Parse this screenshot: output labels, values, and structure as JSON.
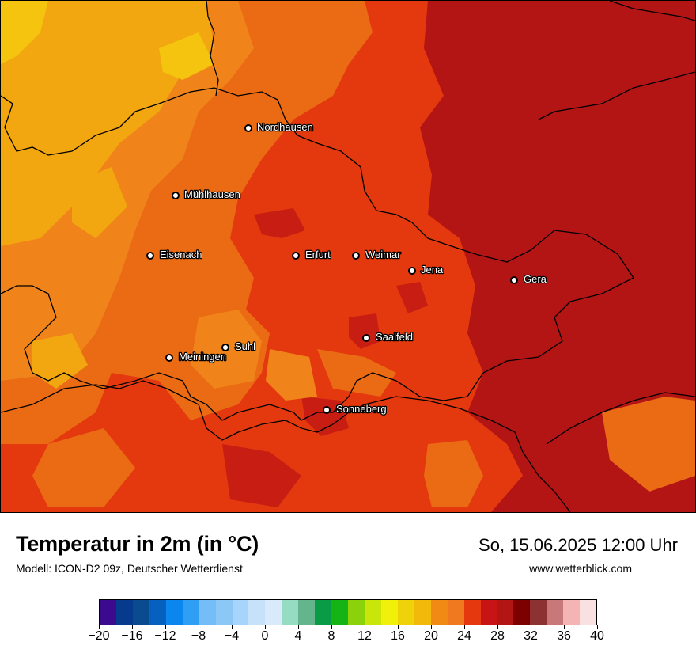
{
  "header": {
    "title": "Temperatur in 2m (in °C)",
    "model": "Modell: ICON-D2 09z, Deutscher Wetterdienst",
    "datetime": "So, 15.06.2025 12:00 Uhr",
    "website": "www.wetterblick.com"
  },
  "map": {
    "cities": [
      {
        "name": "Nordhausen"
      },
      {
        "name": "Mühlhausen"
      },
      {
        "name": "Eisenach"
      },
      {
        "name": "Erfurt"
      },
      {
        "name": "Weimar"
      },
      {
        "name": "Jena"
      },
      {
        "name": "Gera"
      },
      {
        "name": "Saalfeld"
      },
      {
        "name": "Suhl"
      },
      {
        "name": "Meiningen"
      },
      {
        "name": "Sonneberg"
      }
    ],
    "colors": {
      "t18": "#f5c40f",
      "t20": "#f2a60f",
      "t22": "#f0841a",
      "t24": "#eb6a14",
      "t26": "#e4380e",
      "t28": "#c81d12",
      "t30": "#b31414"
    }
  },
  "legend": {
    "colors": [
      "#3b0a8f",
      "#063a8c",
      "#0a4a8e",
      "#0660c0",
      "#0a86ee",
      "#2f9ff5",
      "#74bdf8",
      "#8cc8f6",
      "#a6d4fa",
      "#c6e2fb",
      "#d9ebfb",
      "#96dcc2",
      "#64b48c",
      "#0a9b46",
      "#14b414",
      "#8cd20a",
      "#c8e60a",
      "#f0f00a",
      "#f0d20a",
      "#f2b90a",
      "#f08a14",
      "#f0781e",
      "#e6380e",
      "#c81414",
      "#b31414",
      "#7d0000",
      "#8c3232",
      "#c87878",
      "#f5b4b4",
      "#fae1e1"
    ],
    "ticks": [
      "−20",
      "−16",
      "−12",
      "−8",
      "−4",
      "0",
      "4",
      "8",
      "12",
      "16",
      "20",
      "24",
      "28",
      "32",
      "36",
      "40"
    ]
  }
}
